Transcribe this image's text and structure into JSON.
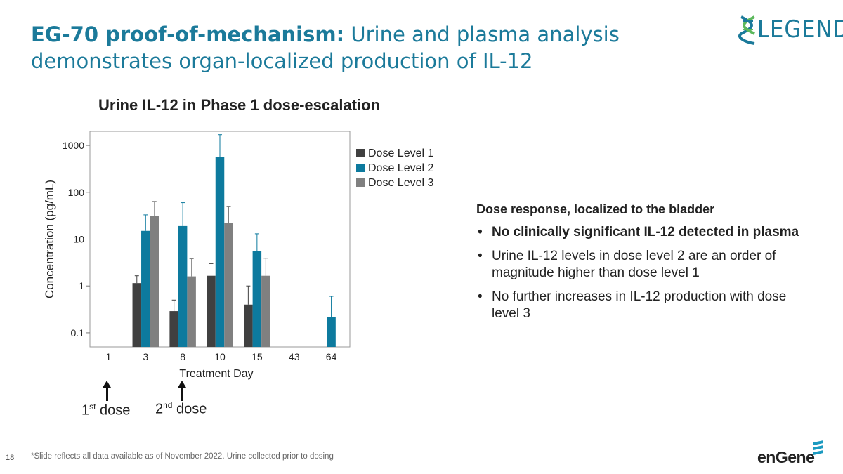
{
  "slide": {
    "title_bold": "EG-70 proof-of-mechanism:",
    "title_rest": " Urine and plasma analysis demonstrates organ-localized production of IL-12",
    "logo_text": "LEGEND",
    "footnote": "*Slide reflects all data available as of November 2022. Urine collected prior to dosing",
    "page_number": "18",
    "company_logo": "enGene",
    "first_dose_label": "1",
    "first_dose_sup": "st",
    "first_dose_suffix": " dose",
    "second_dose_label": "2",
    "second_dose_sup": "nd",
    "second_dose_suffix": " dose"
  },
  "panel": {
    "heading": "Dose response, localized to the bladder",
    "bullets": [
      "No clinically significant IL-12 detected in plasma",
      "Urine IL-12 levels in dose level 2 are an order of magnitude higher than dose level 1",
      "No further increases in IL-12 production with dose level 3"
    ]
  },
  "chart_data": {
    "type": "bar",
    "title": "Urine IL-12 in Phase 1 dose-escalation",
    "xlabel": "Treatment Day",
    "ylabel": "Concentration (pg/mL)",
    "yscale": "log",
    "ylim": [
      0.05,
      2000
    ],
    "yticks": [
      0.1,
      1,
      10,
      100,
      1000
    ],
    "ytick_labels": [
      "0.1",
      "1",
      "10",
      "100",
      "1000"
    ],
    "categories": [
      "1",
      "3",
      "8",
      "10",
      "15",
      "43",
      "64"
    ],
    "legend_position": "top-right",
    "grid": false,
    "series": [
      {
        "name": "Dose Level 1",
        "color": "#404040",
        "values": [
          null,
          1.15,
          0.29,
          1.65,
          0.4,
          null,
          null
        ],
        "error_upper": [
          null,
          1.65,
          0.5,
          3.0,
          1.0,
          null,
          null
        ]
      },
      {
        "name": "Dose Level 2",
        "color": "#0d7a9e",
        "values": [
          null,
          15,
          19,
          560,
          5.6,
          null,
          0.22
        ],
        "error_upper": [
          null,
          33,
          60,
          1700,
          13,
          null,
          0.6
        ]
      },
      {
        "name": "Dose Level 3",
        "color": "#808080",
        "values": [
          null,
          31,
          1.6,
          22,
          1.65,
          null,
          null
        ],
        "error_upper": [
          null,
          64,
          3.8,
          49,
          3.9,
          null,
          null
        ]
      }
    ]
  }
}
